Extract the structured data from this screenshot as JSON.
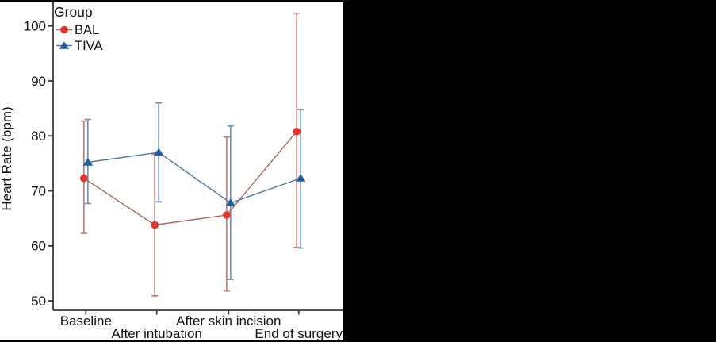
{
  "figure": {
    "panel_bg": "#ffffff",
    "outer_bg": "#000000",
    "axis_color": "#3a3a3a",
    "text_color": "#111111"
  },
  "chart_data": {
    "type": "line",
    "title": "",
    "xlabel": "",
    "ylabel": "Heart Rate (bpm)",
    "ylim": [
      50,
      104
    ],
    "yticks": [
      50,
      60,
      70,
      80,
      90,
      100
    ],
    "grid": false,
    "legend_title": "Group",
    "legend_position": "top-left-inside",
    "categories": [
      "Baseline",
      "After intubation",
      "After skin incision",
      "End of surgery"
    ],
    "series": [
      {
        "name": "BAL",
        "marker": "circle",
        "color": "#e8332a",
        "line_color": "#b2635d",
        "error_color": "#c17d78",
        "values": [
          72.3,
          63.8,
          65.6,
          80.8
        ],
        "error_low": [
          62.3,
          50.9,
          51.8,
          59.7
        ],
        "error_high": [
          82.7,
          76.7,
          79.8,
          102.3
        ]
      },
      {
        "name": "TIVA",
        "marker": "triangle",
        "color": "#1d5fa5",
        "line_color": "#4a78a0",
        "error_color": "#7092ad",
        "values": [
          75.2,
          77.0,
          67.8,
          72.3
        ],
        "error_low": [
          67.7,
          68.0,
          53.9,
          59.6
        ],
        "error_high": [
          83.0,
          86.0,
          81.8,
          84.8
        ]
      }
    ]
  }
}
